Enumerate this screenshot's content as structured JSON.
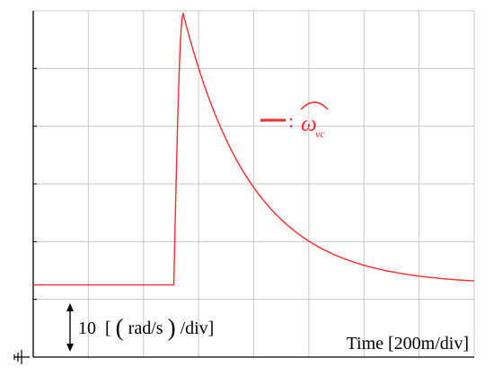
{
  "chart_data": {
    "type": "line",
    "title": "",
    "grid": true,
    "x_axis": {
      "label": "Time [200m/div]",
      "divisions": 8
    },
    "y_axis": {
      "scale_label_value": "10",
      "scale_label_unit_open": "[",
      "scale_label_unit_paren_open": "(",
      "scale_label_unit_body": "rad/s",
      "scale_label_unit_paren_close": ")",
      "scale_label_unit_tail": "/div]",
      "divisions": 6
    },
    "legend": {
      "placement": "upper-middle-right",
      "separator": ":",
      "symbol": "ω",
      "symbol_subscript": "vc",
      "symbol_accent": "hat"
    },
    "series": [
      {
        "color": "#ff2a2a",
        "step_time_div": 2.55,
        "baseline_div": 1.25,
        "peak_div": 5.95,
        "peak_time_div": 2.72,
        "decay_time_constant_div": 1.25,
        "x_unit": "div",
        "y_unit": "div"
      }
    ]
  },
  "colors": {
    "grid": "#c8c8c8",
    "frame": "#000000",
    "trace": "#ff2a2a",
    "text": "#000000"
  },
  "icons": {
    "ground": "ground-icon",
    "scale_arrow": "double-arrow-icon"
  }
}
